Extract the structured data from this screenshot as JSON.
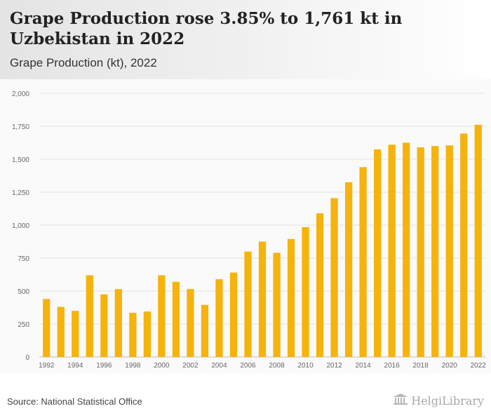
{
  "header": {
    "title": "Grape Production rose 3.85% to 1,761 kt in Uzbekistan in 2022",
    "subtitle": "Grape Production (kt), 2022"
  },
  "footer": {
    "source": "Source: National Statistical Office",
    "logo_text": "HelgiLibrary"
  },
  "colors": {
    "bar": "#f5b30c",
    "grid": "#e2e2e2",
    "axis_text": "#666666"
  },
  "chart_data": {
    "type": "bar",
    "title": "",
    "xlabel": "",
    "ylabel": "",
    "ylim": [
      0,
      2000
    ],
    "yticks": [
      0,
      250,
      500,
      750,
      1000,
      1250,
      1500,
      1750,
      2000
    ],
    "ytick_labels": [
      "0",
      "250",
      "500",
      "750",
      "1,000",
      "1,250",
      "1,500",
      "1,750",
      "2,000"
    ],
    "grid": true,
    "categories": [
      "1992",
      "1993",
      "1994",
      "1995",
      "1996",
      "1997",
      "1998",
      "1999",
      "2000",
      "2001",
      "2002",
      "2003",
      "2004",
      "2005",
      "2006",
      "2007",
      "2008",
      "2009",
      "2010",
      "2011",
      "2012",
      "2013",
      "2014",
      "2015",
      "2016",
      "2017",
      "2018",
      "2019",
      "2020",
      "2021",
      "2022"
    ],
    "xtick_labels": [
      "1992",
      "1994",
      "1996",
      "1998",
      "2000",
      "2002",
      "2004",
      "2006",
      "2008",
      "2010",
      "2012",
      "2014",
      "2016",
      "2018",
      "2020",
      "2022"
    ],
    "values": [
      440,
      380,
      350,
      620,
      475,
      515,
      335,
      345,
      620,
      570,
      515,
      395,
      590,
      640,
      800,
      875,
      790,
      895,
      985,
      1090,
      1205,
      1325,
      1440,
      1575,
      1610,
      1625,
      1590,
      1600,
      1605,
      1695,
      1761
    ]
  }
}
